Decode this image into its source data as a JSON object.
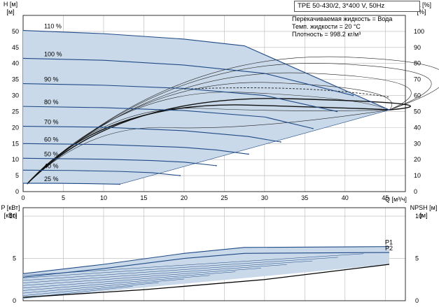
{
  "header": {
    "title": "TPE 50-430/2, 3*400 V, 50Hz",
    "medium": "Перекачиваемая жидкость = Вода",
    "temperature": "Темп. жидкости = 20 °C",
    "density": "Плотность = 998.2 кг/м³"
  },
  "colors": {
    "curve": "#1f4a86",
    "band": "#c9d9e9",
    "grid": "#b8b8b8",
    "eta_curve": "#111111"
  },
  "chart_data": [
    {
      "type": "line",
      "title": "",
      "xlabel": "Q [м³/ч]",
      "ylabel": "H [м]",
      "y2label": "eta [%]",
      "xlim": [
        0,
        47.5
      ],
      "ylim": [
        0,
        55
      ],
      "y2lim": [
        0,
        110
      ],
      "xticks": [
        0,
        5,
        10,
        15,
        20,
        25,
        30,
        35,
        40,
        45
      ],
      "yticks": [
        0,
        5,
        10,
        15,
        20,
        25,
        30,
        35,
        40,
        45,
        50
      ],
      "y2ticks": [
        0,
        10,
        20,
        30,
        40,
        50,
        60,
        70,
        80,
        90,
        100
      ],
      "grid": true,
      "head_curves": [
        {
          "name": "110 %",
          "x": [
            0,
            10,
            20,
            27.5,
            45.5
          ],
          "y": [
            50.3,
            49.3,
            47.6,
            45.5,
            25.5
          ]
        },
        {
          "name": "100 %",
          "x": [
            0,
            10,
            20,
            30,
            41
          ],
          "y": [
            41.6,
            41.0,
            39.5,
            36.9,
            30.0
          ]
        },
        {
          "name": "90 %",
          "x": [
            0,
            10,
            20,
            30,
            39
          ],
          "y": [
            33.7,
            33.2,
            32.2,
            30.0,
            25.0
          ]
        },
        {
          "name": "80 %",
          "x": [
            0,
            10,
            20,
            30,
            36
          ],
          "y": [
            26.6,
            26.2,
            25.3,
            23.3,
            19.7
          ]
        },
        {
          "name": "70 %",
          "x": [
            0,
            10,
            20,
            28,
            32
          ],
          "y": [
            20.4,
            20.1,
            19.0,
            17.2,
            15.5
          ]
        },
        {
          "name": "60 %",
          "x": [
            0,
            10,
            20,
            24,
            28
          ],
          "y": [
            15.0,
            14.7,
            13.8,
            13.0,
            11.7
          ]
        },
        {
          "name": "50 %",
          "x": [
            0,
            10,
            16,
            20,
            24
          ],
          "y": [
            10.4,
            10.1,
            9.7,
            9.2,
            8.1
          ]
        },
        {
          "name": "40 %",
          "x": [
            0,
            6,
            12,
            16,
            19.5
          ],
          "y": [
            6.7,
            6.6,
            6.3,
            5.9,
            5.0
          ]
        },
        {
          "name": "25 %",
          "x": [
            0,
            4,
            8,
            12
          ],
          "y": [
            2.6,
            2.6,
            2.5,
            2.3
          ]
        }
      ],
      "min_curve": {
        "x": [
          0,
          12
        ],
        "y": [
          2.5,
          2.3
        ]
      },
      "envelope": {
        "x": [
          0,
          10,
          20,
          27.5,
          45.5,
          12,
          0
        ],
        "y": [
          50.3,
          49.3,
          47.6,
          45.5,
          25.5,
          2.3,
          2.5
        ]
      }
    },
    {
      "type": "line",
      "title": "",
      "xlabel": "Q [м³/ч]",
      "ylabel": "P [кВт]",
      "y2label": "NPSH [м]",
      "xlim": [
        0,
        47.5
      ],
      "ylim": [
        0,
        11
      ],
      "y2lim": [
        0,
        11
      ],
      "yticks": [
        0,
        5,
        10
      ],
      "y2ticks": [
        0,
        5,
        10
      ],
      "grid": true,
      "power_curves": [
        {
          "name": "P1",
          "x": [
            0,
            10,
            20,
            27.5,
            45.5
          ],
          "y": [
            3.2,
            4.3,
            5.6,
            6.3,
            6.4
          ]
        },
        {
          "name": "P2",
          "x": [
            0,
            10,
            20,
            27.5,
            45.5
          ],
          "y": [
            2.8,
            3.8,
            5.0,
            5.6,
            5.7
          ]
        }
      ],
      "npsh_curve": {
        "name": "NPSH",
        "x": [
          0,
          15,
          30,
          45.5
        ],
        "y": [
          0.4,
          1.3,
          2.5,
          4.3
        ]
      }
    }
  ]
}
